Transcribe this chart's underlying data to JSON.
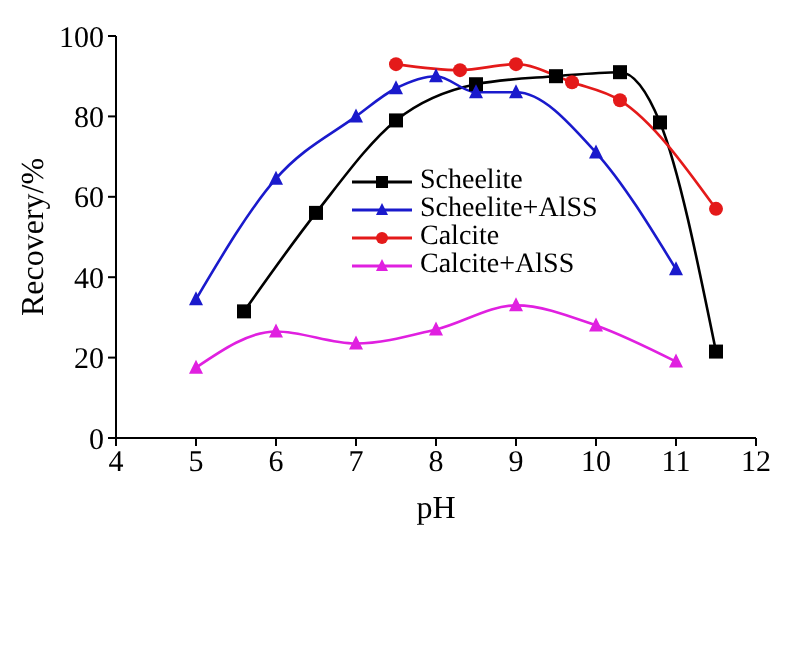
{
  "chart_data": {
    "type": "line",
    "xlabel": "pH",
    "ylabel": "Recovery/%",
    "xlim": [
      4,
      12
    ],
    "xticks": [
      4,
      5,
      6,
      7,
      8,
      9,
      10,
      11,
      12
    ],
    "ylim": [
      0,
      100
    ],
    "yticks": [
      0,
      20,
      40,
      60,
      80,
      100
    ],
    "grid": false,
    "legend": "right",
    "series": [
      {
        "name": "Scheelite",
        "color": "#000000",
        "marker": "square",
        "x": [
          5.6,
          6.5,
          7.5,
          8.5,
          9.5,
          10.3,
          10.8,
          11.5
        ],
        "values": [
          31.5,
          56,
          79,
          88,
          90,
          91,
          78.5,
          21.5
        ]
      },
      {
        "name": "Scheelite+AlSS",
        "color": "#1a1acc",
        "marker": "triangle",
        "x": [
          5,
          6,
          7,
          7.5,
          8,
          8.5,
          9,
          10,
          11
        ],
        "values": [
          34.5,
          64.5,
          80,
          87,
          90,
          86,
          86,
          71,
          42
        ]
      },
      {
        "name": "Calcite",
        "color": "#e41a1a",
        "marker": "circle",
        "x": [
          7.5,
          8.3,
          9,
          9.7,
          10.3,
          11.5
        ],
        "values": [
          93,
          91.5,
          93,
          88.5,
          84,
          57
        ]
      },
      {
        "name": "Calcite+AlSS",
        "color": "#e020e0",
        "marker": "triangle",
        "x": [
          5,
          6,
          7,
          8,
          9,
          10,
          11
        ],
        "values": [
          17.5,
          26.5,
          23.5,
          27,
          33,
          28,
          19
        ]
      }
    ]
  }
}
